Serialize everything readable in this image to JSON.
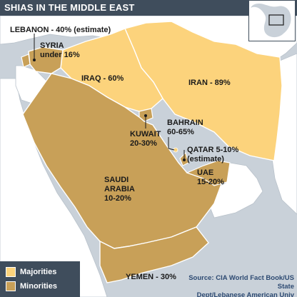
{
  "title": "SHIAS IN THE MIDDLE EAST",
  "colors": {
    "majority": "#fcd37c",
    "minority": "#c8a058",
    "other_land": "#ffffff",
    "sea": "#c9d1d9",
    "border": "#ffffff",
    "title_bar": "#3f4d5c"
  },
  "countries": [
    {
      "name": "LEBANON",
      "value": "40% (estimate)",
      "label": "LEBANON - 40% (estimate)",
      "status": "minority"
    },
    {
      "name": "SYRIA",
      "label_line1": "SYRIA",
      "label_line2": "under 16%",
      "status": "minority"
    },
    {
      "name": "IRAQ",
      "label": "IRAQ - 60%",
      "status": "majority"
    },
    {
      "name": "IRAN",
      "label": "IRAN - 89%",
      "status": "majority"
    },
    {
      "name": "BAHRAIN",
      "label_line1": "BAHRAIN",
      "label_line2": "60-65%",
      "status": "majority"
    },
    {
      "name": "KUWAIT",
      "label_line1": "KUWAIT",
      "label_line2": "20-30%",
      "status": "minority"
    },
    {
      "name": "QATAR",
      "label_line1": "QATAR 5-10%",
      "label_line2": "(estimate)",
      "status": "minority"
    },
    {
      "name": "UAE",
      "label_line1": "UAE",
      "label_line2": "15-20%",
      "status": "minority"
    },
    {
      "name": "SAUDI ARABIA",
      "label_line1": "SAUDI",
      "label_line2": "ARABIA",
      "label_line3": "10-20%",
      "status": "minority"
    },
    {
      "name": "YEMEN",
      "label": "YEMEN - 30%",
      "status": "minority"
    }
  ],
  "legend": {
    "majorities": "Majorities",
    "minorities": "Minorities"
  },
  "source": {
    "line1": "Source: CIA World Fact Book/US State",
    "line2": "Dept/Lebanese American Univ"
  },
  "inset": {
    "icon": "globe-locator-icon"
  }
}
